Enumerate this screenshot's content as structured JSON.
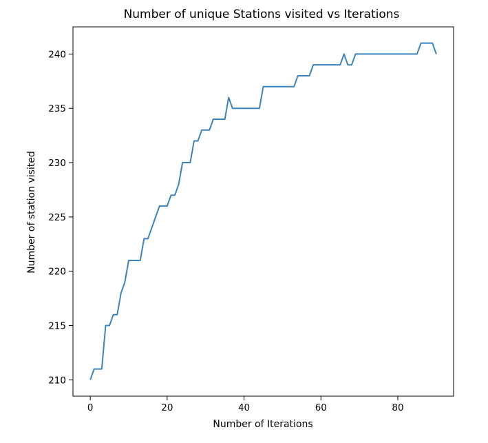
{
  "chart_data": {
    "type": "line",
    "title": "Number of unique Stations visited vs Iterations",
    "xlabel": "Number of Iterations",
    "ylabel": "Number of station visited",
    "xlim": [
      -4.5,
      94.5
    ],
    "ylim": [
      208.5,
      242.5
    ],
    "xticks": [
      0,
      20,
      40,
      60,
      80
    ],
    "yticks": [
      210,
      215,
      220,
      225,
      230,
      235,
      240
    ],
    "grid": false,
    "line_color": "#3b83c0",
    "series": [
      {
        "x": [
          0,
          1,
          2,
          3,
          4,
          5,
          6,
          7,
          8,
          9,
          10,
          11,
          12,
          13,
          14,
          15,
          16,
          17,
          18,
          19,
          20,
          21,
          22,
          23,
          24,
          25,
          26,
          27,
          28,
          29,
          30,
          31,
          32,
          33,
          34,
          35,
          36,
          37,
          38,
          39,
          40,
          41,
          42,
          43,
          44,
          45,
          46,
          47,
          48,
          49,
          50,
          51,
          52,
          53,
          54,
          55,
          56,
          57,
          58,
          59,
          60,
          61,
          62,
          63,
          64,
          65,
          66,
          67,
          68,
          69,
          70,
          71,
          72,
          73,
          74,
          75,
          76,
          77,
          78,
          79,
          80,
          81,
          82,
          83,
          84,
          85,
          86,
          87,
          88,
          89,
          90
        ],
        "y": [
          210,
          211,
          211,
          211,
          215,
          215,
          216,
          216,
          218,
          219,
          221,
          221,
          221,
          221,
          223,
          223,
          224,
          225,
          226,
          226,
          226,
          227,
          227,
          228,
          230,
          230,
          230,
          232,
          232,
          233,
          233,
          233,
          234,
          234,
          234,
          234,
          236,
          235,
          235,
          235,
          235,
          235,
          235,
          235,
          235,
          237,
          237,
          237,
          237,
          237,
          237,
          237,
          237,
          237,
          238,
          238,
          238,
          238,
          239,
          239,
          239,
          239,
          239,
          239,
          239,
          239,
          240,
          239,
          239,
          240,
          240,
          240,
          240,
          240,
          240,
          240,
          240,
          240,
          240,
          240,
          240,
          240,
          240,
          240,
          240,
          240,
          241,
          241,
          241,
          241,
          240
        ]
      }
    ]
  }
}
